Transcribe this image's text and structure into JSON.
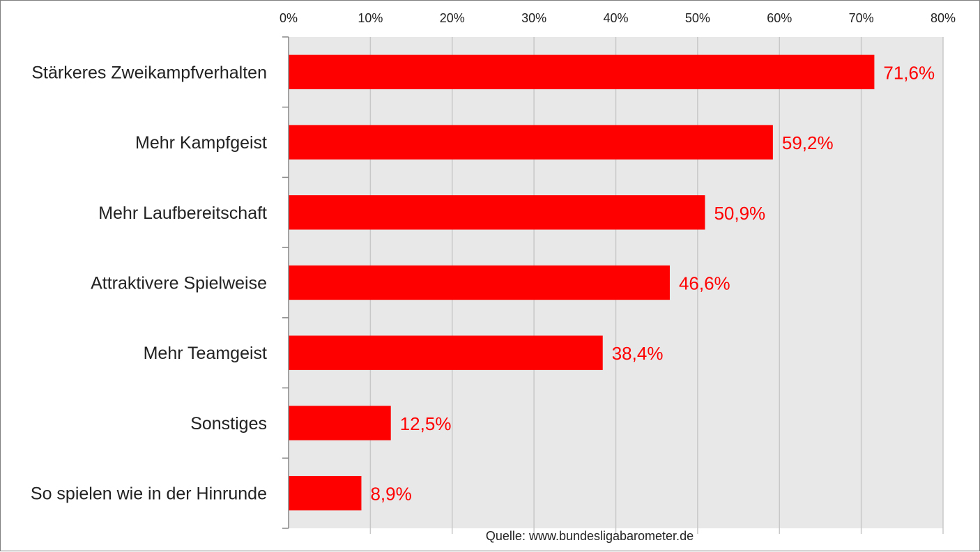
{
  "chart_data": {
    "type": "bar",
    "orientation": "horizontal",
    "categories": [
      "Stärkeres Zweikampfverhalten",
      "Mehr Kampfgeist",
      "Mehr Laufbereitschaft",
      "Attraktivere Spielweise",
      "Mehr Teamgeist",
      "Sonstiges",
      "So spielen wie in der Hinrunde"
    ],
    "values": [
      71.6,
      59.2,
      50.9,
      46.6,
      38.4,
      12.5,
      8.9
    ],
    "data_labels": [
      "71,6%",
      "59,2%",
      "50,9%",
      "46,6%",
      "38,4%",
      "12,5%",
      "8,9%"
    ],
    "x_ticks": [
      0,
      10,
      20,
      30,
      40,
      50,
      60,
      70,
      80
    ],
    "x_tick_labels": [
      "0%",
      "10%",
      "20%",
      "30%",
      "40%",
      "50%",
      "60%",
      "70%",
      "80%"
    ],
    "xlim": [
      0,
      80
    ],
    "x_axis_position": "top",
    "title": "",
    "xlabel": "",
    "ylabel": "",
    "grid": true,
    "source": "Quelle: www.bundesligabarometer.de",
    "colors": {
      "bar": "#ff0000",
      "data_label": "#ff0000",
      "plot_background": "#e8e8e8",
      "gridline": "#c8c8c8",
      "axis": "#888888"
    }
  }
}
